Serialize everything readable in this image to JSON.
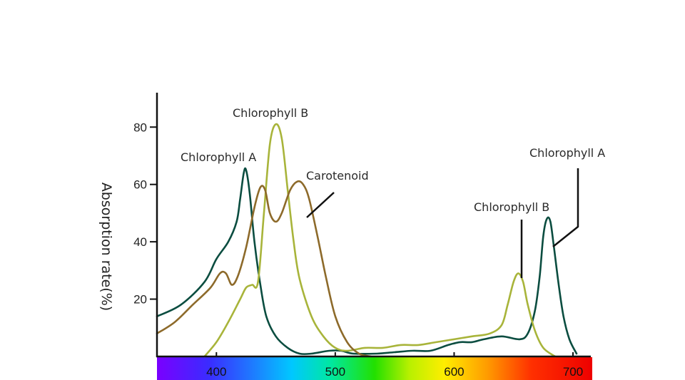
{
  "chart_data": {
    "type": "line",
    "title": "",
    "xlabel": "",
    "ylabel": "Absorption rate(%)",
    "xlim": [
      350,
      715
    ],
    "ylim": [
      0,
      92
    ],
    "x_ticks": [
      400,
      500,
      600,
      700
    ],
    "y_ticks": [
      20,
      40,
      60,
      80
    ],
    "grid": false,
    "legend": "none",
    "spectrum_bar": true,
    "series": [
      {
        "key": "chlorophyll_a",
        "color": "#0b4d40",
        "points": [
          [
            350,
            14
          ],
          [
            370,
            18
          ],
          [
            390,
            26
          ],
          [
            400,
            34
          ],
          [
            410,
            40
          ],
          [
            417,
            47
          ],
          [
            420,
            55
          ],
          [
            423,
            64
          ],
          [
            425,
            65
          ],
          [
            428,
            57
          ],
          [
            432,
            40
          ],
          [
            437,
            25
          ],
          [
            442,
            14
          ],
          [
            450,
            7
          ],
          [
            460,
            3
          ],
          [
            470,
            1
          ],
          [
            480,
            1
          ],
          [
            495,
            2
          ],
          [
            505,
            2
          ],
          [
            515,
            1
          ],
          [
            535,
            1
          ],
          [
            550,
            1.5
          ],
          [
            565,
            2
          ],
          [
            580,
            2
          ],
          [
            595,
            4
          ],
          [
            605,
            5
          ],
          [
            615,
            5
          ],
          [
            625,
            6
          ],
          [
            640,
            7
          ],
          [
            655,
            6
          ],
          [
            662,
            8
          ],
          [
            668,
            16
          ],
          [
            672,
            28
          ],
          [
            675,
            42
          ],
          [
            678,
            48
          ],
          [
            681,
            47
          ],
          [
            684,
            38
          ],
          [
            688,
            25
          ],
          [
            692,
            14
          ],
          [
            697,
            6
          ],
          [
            703,
            1
          ]
        ]
      },
      {
        "key": "chlorophyll_b",
        "color": "#a8b43a",
        "points": [
          [
            390,
            0
          ],
          [
            400,
            5
          ],
          [
            410,
            12
          ],
          [
            420,
            20
          ],
          [
            425,
            24
          ],
          [
            430,
            25
          ],
          [
            435,
            26
          ],
          [
            440,
            50
          ],
          [
            445,
            74
          ],
          [
            450,
            81
          ],
          [
            455,
            76
          ],
          [
            460,
            58
          ],
          [
            465,
            40
          ],
          [
            470,
            27
          ],
          [
            480,
            14
          ],
          [
            490,
            7
          ],
          [
            500,
            3
          ],
          [
            510,
            2
          ],
          [
            525,
            3
          ],
          [
            540,
            3
          ],
          [
            555,
            4
          ],
          [
            570,
            4
          ],
          [
            585,
            5
          ],
          [
            600,
            6
          ],
          [
            615,
            7
          ],
          [
            630,
            8
          ],
          [
            640,
            11
          ],
          [
            645,
            18
          ],
          [
            650,
            26
          ],
          [
            654,
            29
          ],
          [
            658,
            26
          ],
          [
            662,
            18
          ],
          [
            668,
            9
          ],
          [
            675,
            3
          ],
          [
            685,
            0
          ]
        ]
      },
      {
        "key": "carotenoid",
        "color": "#8d6a2a",
        "points": [
          [
            350,
            8
          ],
          [
            365,
            12
          ],
          [
            380,
            18
          ],
          [
            395,
            24
          ],
          [
            403,
            29
          ],
          [
            408,
            29
          ],
          [
            413,
            25
          ],
          [
            418,
            28
          ],
          [
            425,
            38
          ],
          [
            432,
            52
          ],
          [
            437,
            59
          ],
          [
            441,
            58
          ],
          [
            445,
            50
          ],
          [
            450,
            47
          ],
          [
            455,
            50
          ],
          [
            462,
            58
          ],
          [
            468,
            61
          ],
          [
            473,
            60
          ],
          [
            478,
            55
          ],
          [
            485,
            42
          ],
          [
            492,
            28
          ],
          [
            500,
            14
          ],
          [
            510,
            5
          ],
          [
            520,
            1
          ],
          [
            530,
            0
          ]
        ]
      }
    ],
    "annotations": [
      {
        "text": "Chlorophyll B",
        "series": "chlorophyll_b"
      },
      {
        "text": "Chlorophyll A",
        "series": "chlorophyll_a"
      },
      {
        "text": "Carotenoid",
        "series": "carotenoid"
      },
      {
        "text": "Chlorophyll B",
        "series": "chlorophyll_b"
      },
      {
        "text": "Chlorophyll A",
        "series": "chlorophyll_a"
      }
    ]
  }
}
